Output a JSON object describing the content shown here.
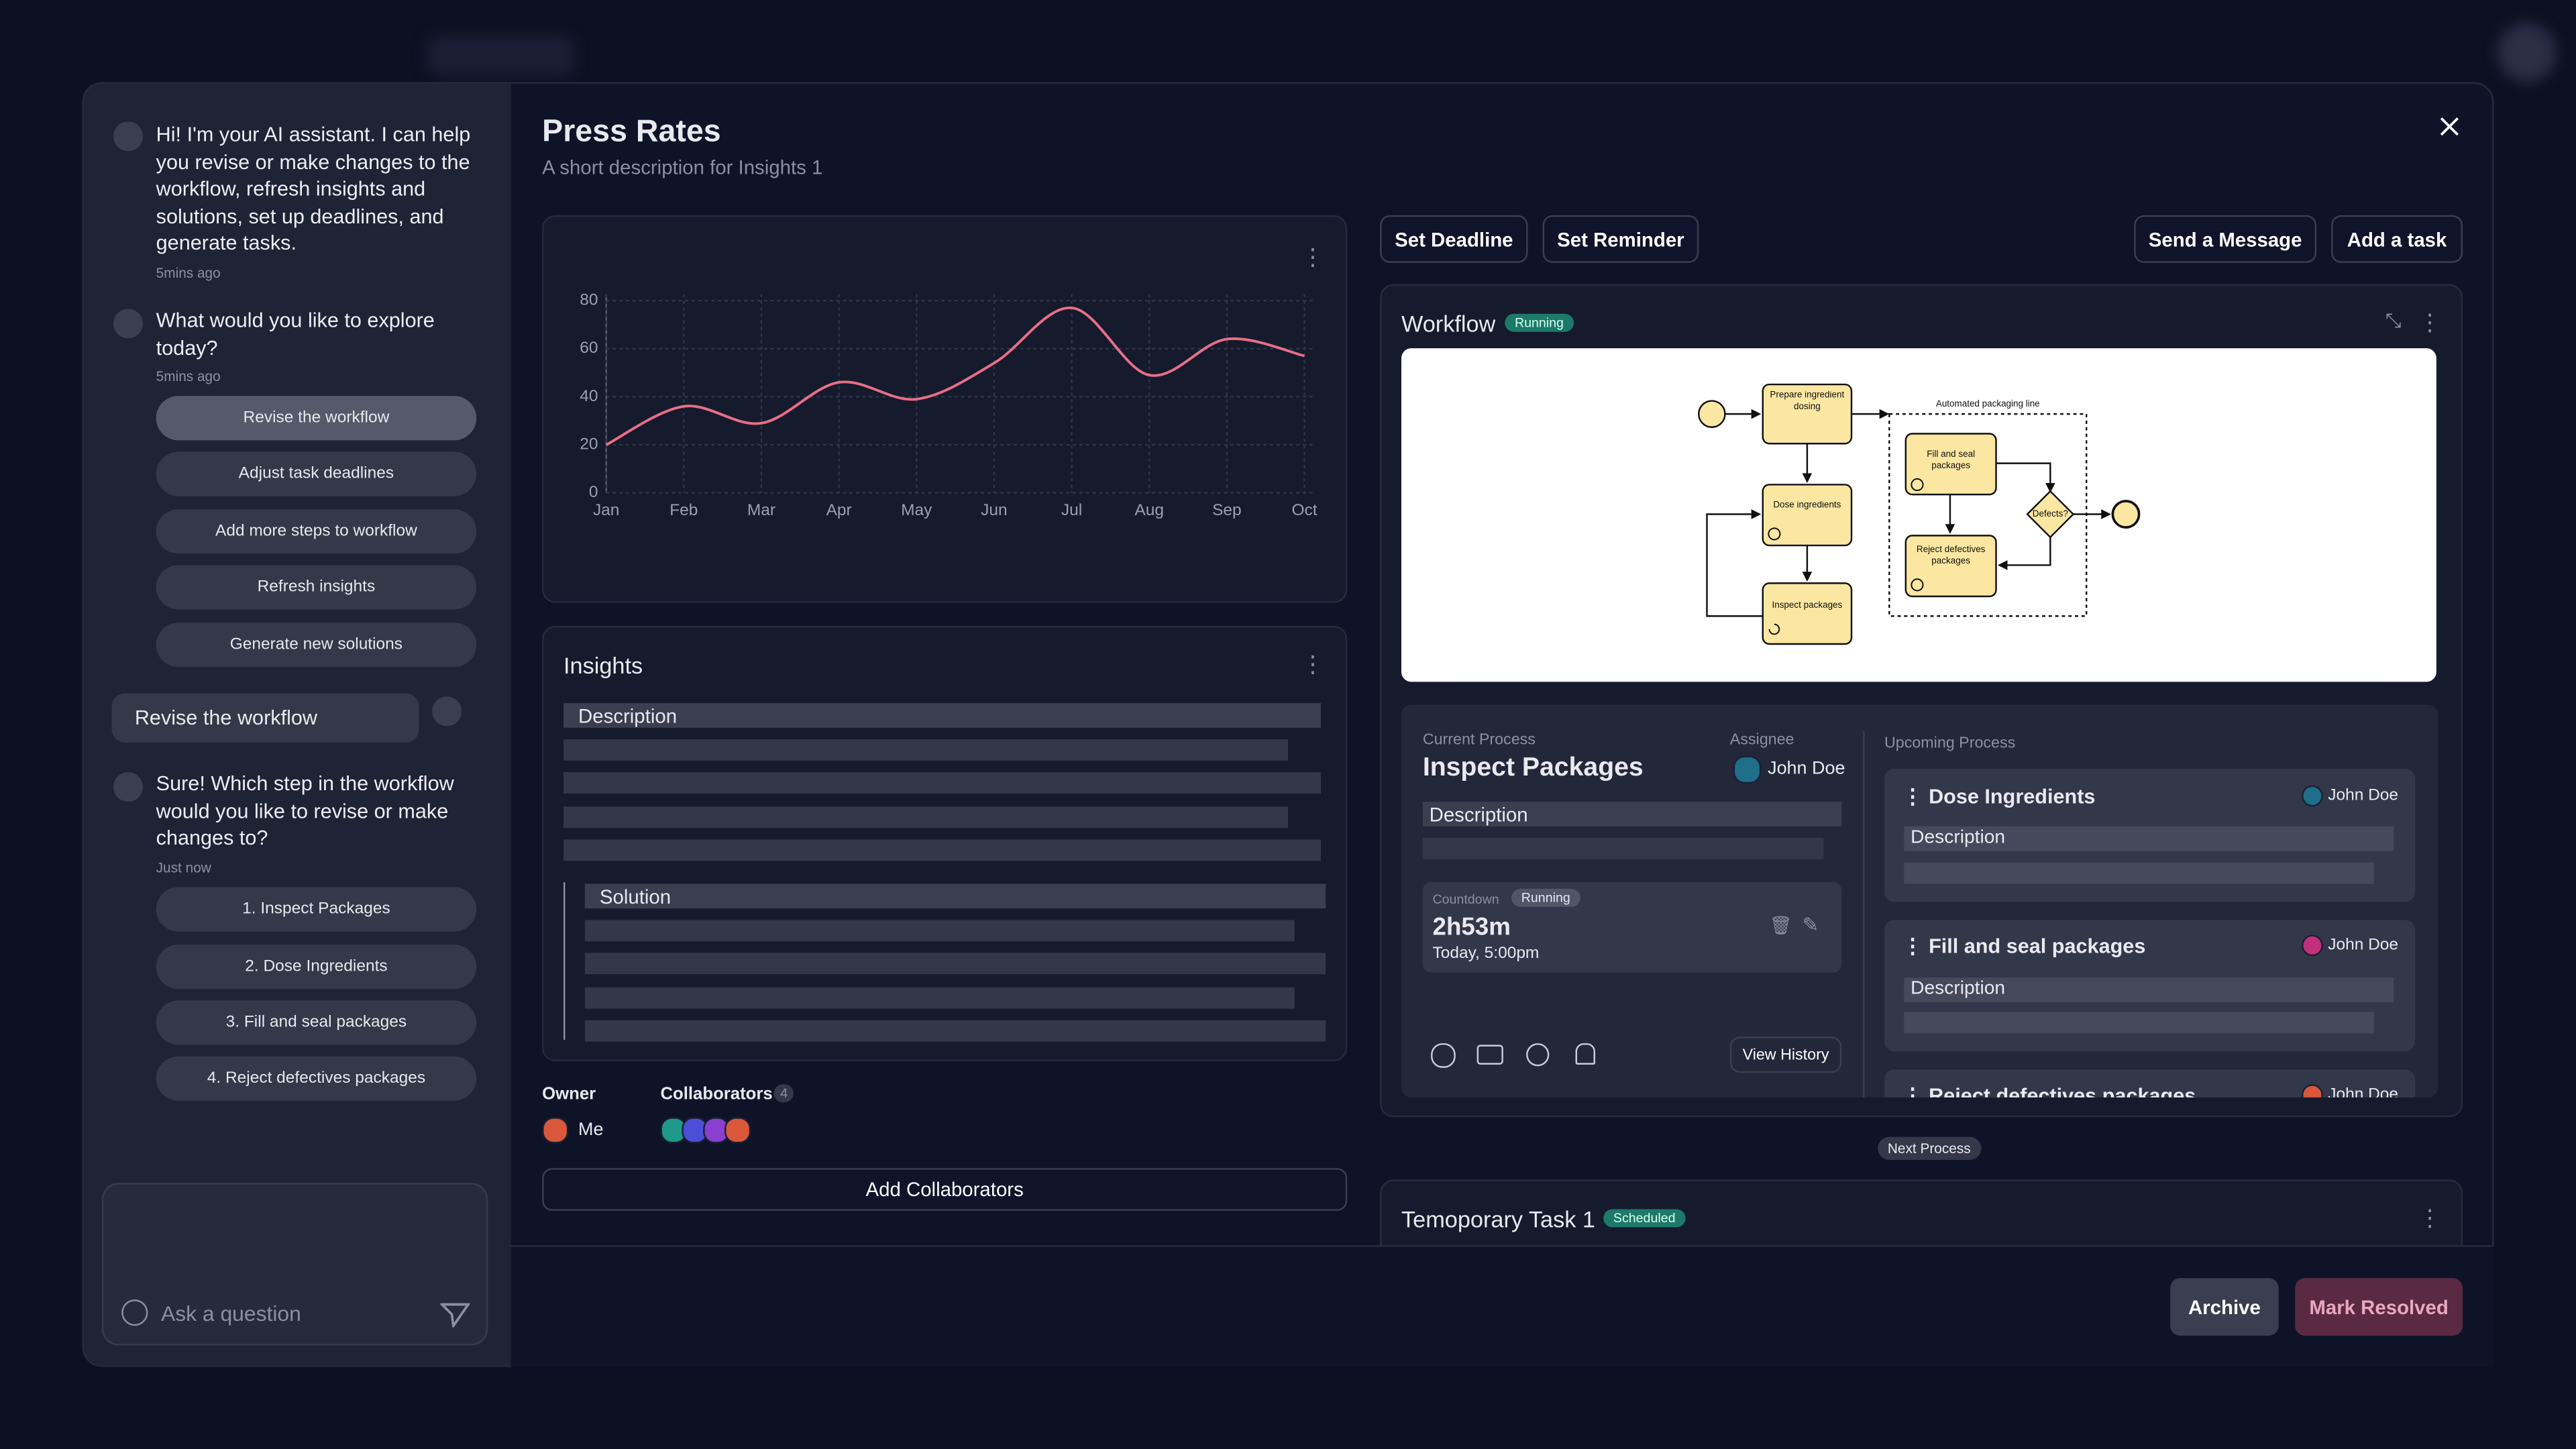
{
  "chart_data": {
    "type": "line",
    "categories": [
      "Jan",
      "Feb",
      "Mar",
      "Apr",
      "May",
      "Jun",
      "Jul",
      "Aug",
      "Sep",
      "Oct"
    ],
    "values": [
      20,
      36,
      29,
      46,
      39,
      54,
      77,
      49,
      64,
      57
    ],
    "color": "#e86f86",
    "ylim": [
      0,
      80
    ],
    "yticks": [
      0,
      20,
      40,
      60,
      80
    ],
    "grid": true
  },
  "header": {
    "title": "Press Rates",
    "subtitle": "A short description for Insights 1"
  },
  "chat": {
    "messages": [
      {
        "text": "Hi! I'm your AI assistant. I can help you revise or make changes to the workflow, refresh insights and solutions, set up deadlines, and generate tasks.",
        "time": "5mins ago"
      },
      {
        "text": "What would you like to explore today?",
        "time": "5mins ago",
        "options": [
          "Revise the workflow",
          "Adjust task deadlines",
          "Add more steps to workflow",
          "Refresh insights",
          "Generate new solutions"
        ]
      },
      {
        "text": "Sure! Which step in the workflow would you like to revise or make changes to?",
        "time": "Just now",
        "options": [
          "1. Inspect Packages",
          "2. Dose Ingredients",
          "3. Fill and seal packages",
          "4. Reject defectives packages"
        ]
      }
    ],
    "user_message": "Revise the workflow",
    "input_placeholder": "Ask a question"
  },
  "insights": {
    "title": "Insights",
    "description": "Description",
    "solution": "Solution"
  },
  "people": {
    "owner_label": "Owner",
    "owner": "Me",
    "collaborators_label": "Collaborators",
    "collaborators_count": "4",
    "add_button": "Add Collaborators"
  },
  "actions": [
    "Set Deadline",
    "Set Reminder",
    "Send a Message",
    "Add a task"
  ],
  "workflow": {
    "title": "Workflow",
    "status": "Running",
    "nodes": [
      "Prepare ingredient dosing",
      "Dose ingredients",
      "Inspect packages",
      "Fill and seal packages",
      "Reject defectives packages",
      "Defects?"
    ],
    "group_label": "Automated packaging line",
    "current": {
      "label": "Current Process",
      "name": "Inspect Packages",
      "assignee_label": "Assignee",
      "assignee": "John Doe",
      "description": "Description",
      "countdown_label": "Countdown",
      "countdown_status": "Running",
      "countdown": "2h53m",
      "due": "Today, 5:00pm",
      "history_button": "View History"
    },
    "upcoming": {
      "label": "Upcoming Process",
      "items": [
        {
          "name": "Dose Ingredients",
          "assignee": "John Doe",
          "description": "Description"
        },
        {
          "name": "Fill and seal packages",
          "assignee": "John Doe",
          "description": "Description"
        },
        {
          "name": "Reject defectives packages",
          "assignee": "John Doe"
        }
      ]
    }
  },
  "next_process": "Next Process",
  "task": {
    "title": "Temoporary Task 1",
    "status": "Scheduled"
  },
  "footer": {
    "archive": "Archive",
    "resolve": "Mark Resolved"
  }
}
